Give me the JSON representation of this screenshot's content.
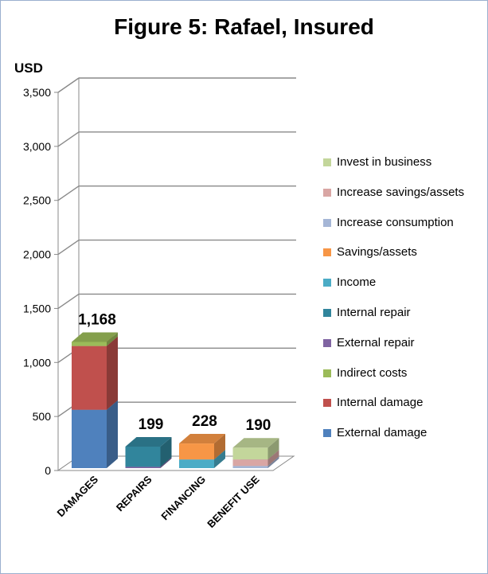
{
  "chart_data": {
    "type": "bar",
    "stacked": true,
    "three_d": true,
    "title": "Figure 5: Rafael, Insured",
    "ylabel": "USD",
    "ylim": [
      0,
      3500
    ],
    "yticks": [
      0,
      500,
      1000,
      1500,
      2000,
      2500,
      3000,
      3500
    ],
    "ytick_labels": [
      "0",
      "500",
      "1,000",
      "1,500",
      "2,000",
      "2,500",
      "3,000",
      "3,500"
    ],
    "categories": [
      "DAMAGES",
      "REPAIRS",
      "FINANCING",
      "BENEFIT USE"
    ],
    "totals": [
      "1,168",
      "199",
      "228",
      "190"
    ],
    "grid": true,
    "legend_position": "right",
    "series": [
      {
        "name": "External damage",
        "color": "#4f81bd",
        "values": [
          540,
          0,
          0,
          0
        ]
      },
      {
        "name": "Internal damage",
        "color": "#c0504d",
        "values": [
          590,
          0,
          0,
          0
        ]
      },
      {
        "name": "Indirect costs",
        "color": "#9bbb59",
        "values": [
          38,
          0,
          0,
          0
        ]
      },
      {
        "name": "External repair",
        "color": "#8064a2",
        "values": [
          0,
          12,
          0,
          0
        ]
      },
      {
        "name": "Internal repair",
        "color": "#31859c",
        "values": [
          0,
          187,
          0,
          0
        ]
      },
      {
        "name": "Income",
        "color": "#4bacc6",
        "values": [
          0,
          0,
          80,
          0
        ]
      },
      {
        "name": "Savings/assets",
        "color": "#f79646",
        "values": [
          0,
          0,
          148,
          0
        ]
      },
      {
        "name": "Increase consumption",
        "color": "#a5b6d6",
        "values": [
          0,
          0,
          0,
          20
        ]
      },
      {
        "name": "Increase savings/assets",
        "color": "#d9a6a4",
        "values": [
          0,
          0,
          0,
          60
        ]
      },
      {
        "name": "Invest in business",
        "color": "#c3d69b",
        "values": [
          0,
          0,
          0,
          110
        ]
      }
    ]
  }
}
